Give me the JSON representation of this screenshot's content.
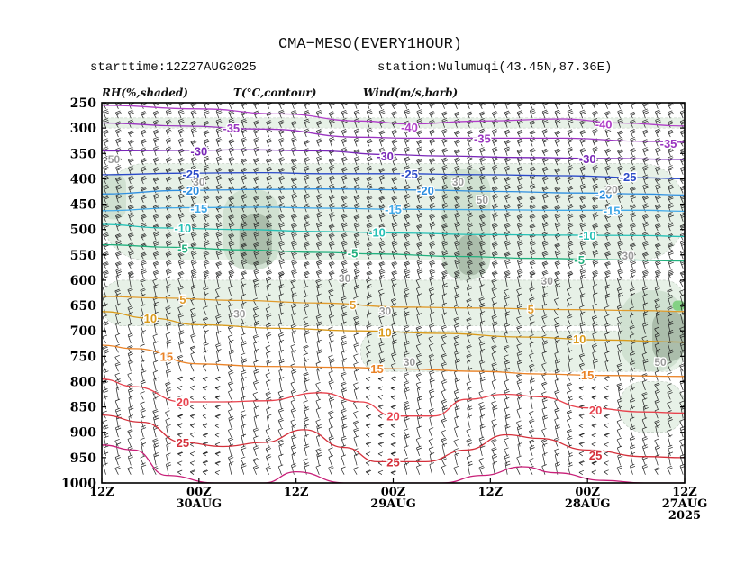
{
  "header": {
    "title": "CMA−MESO(EVERY1HOUR)",
    "starttime": "starttime:12Z27AUG2025",
    "station": "station:Wulumuqi(43.45N,87.36E)"
  },
  "legend": {
    "rh": "RH(%,shaded)",
    "temp": "T(°C,contour)",
    "wind": "Wind(m/s,barb)"
  },
  "colors": {
    "rh_light": "#e6f1e6",
    "rh_mid": "#cfdfd0",
    "rh_dark": "#a9bba9",
    "rh_vdark": "#8ea88f",
    "rh_green": "#7fd07f",
    "neg40": "#b03fc8",
    "neg35": "#9a35c0",
    "neg30": "#7a28b8",
    "neg25": "#2b49c8",
    "neg20": "#2f8fe0",
    "neg15": "#41a9e8",
    "neg10": "#25c0b5",
    "neg5": "#22b07e",
    "pos5": "#e09b2d",
    "pos10": "#d99a1a",
    "pos15": "#ea8226",
    "pos20": "#e8434e",
    "pos25": "#d42f3a",
    "pos30": "#c81f78",
    "barb": "#222222",
    "rh_label": "#9a9a9a"
  },
  "chart_data": {
    "type": "heatmap",
    "title": "CMA−MESO(EVERY1HOUR)",
    "subtitle_left": "starttime:12Z27AUG2025",
    "subtitle_right": "station:Wulumuqi(43.45N,87.36E)",
    "x_ticks": [
      {
        "hours": 72,
        "label": "12Z"
      },
      {
        "hours": 60,
        "label": "00Z",
        "sub": "30AUG"
      },
      {
        "hours": 48,
        "label": "12Z"
      },
      {
        "hours": 36,
        "label": "00Z",
        "sub": "29AUG"
      },
      {
        "hours": 24,
        "label": "12Z"
      },
      {
        "hours": 12,
        "label": "00Z",
        "sub": "28AUG"
      },
      {
        "hours": 0,
        "label": "12Z",
        "sub": "27AUG",
        "sub2": "2025"
      }
    ],
    "x_range_hours": [
      72,
      0
    ],
    "y_label_ticks": [
      250,
      300,
      350,
      400,
      450,
      500,
      550,
      600,
      650,
      700,
      750,
      800,
      850,
      900,
      950,
      1000
    ],
    "ylim_hPa": [
      250,
      1000
    ],
    "rh_contour_labels": [
      {
        "value": 50,
        "h": 70.5,
        "p": 360
      },
      {
        "value": 30,
        "h": 60,
        "p": 405
      },
      {
        "value": 30,
        "h": 28,
        "p": 405
      },
      {
        "value": 30,
        "h": 42,
        "p": 595
      },
      {
        "value": 30,
        "h": 17,
        "p": 600
      },
      {
        "value": 30,
        "h": 55,
        "p": 665
      },
      {
        "value": 30,
        "h": 37,
        "p": 660
      },
      {
        "value": 30,
        "h": 34,
        "p": 760
      },
      {
        "value": 50,
        "h": 25,
        "p": 440
      },
      {
        "value": 50,
        "h": 3,
        "p": 760
      },
      {
        "value": 20,
        "h": 9,
        "p": 420
      },
      {
        "value": 30,
        "h": 7,
        "p": 550
      }
    ],
    "temperature_contours": [
      {
        "value": -40,
        "label": "-40",
        "color": "neg40",
        "pts": [
          [
            72,
            255
          ],
          [
            60,
            262
          ],
          [
            50,
            272
          ],
          [
            40,
            286
          ],
          [
            34,
            292
          ],
          [
            25,
            286
          ],
          [
            15,
            282
          ],
          [
            8,
            290
          ],
          [
            0,
            296
          ]
        ]
      },
      {
        "value": -35,
        "label": "-35",
        "color": "neg35",
        "pts": [
          [
            72,
            290
          ],
          [
            62,
            296
          ],
          [
            52,
            302
          ],
          [
            40,
            318
          ],
          [
            34,
            320
          ],
          [
            25,
            320
          ],
          [
            15,
            320
          ],
          [
            5,
            326
          ],
          [
            0,
            328
          ]
        ]
      },
      {
        "value": -30,
        "label": "-30",
        "color": "neg30",
        "pts": [
          [
            72,
            345
          ],
          [
            62,
            344
          ],
          [
            54,
            343
          ],
          [
            45,
            345
          ],
          [
            37,
            352
          ],
          [
            30,
            355
          ],
          [
            20,
            358
          ],
          [
            10,
            360
          ],
          [
            0,
            362
          ]
        ]
      },
      {
        "value": -25,
        "label": "-25",
        "color": "neg25",
        "pts": [
          [
            72,
            392
          ],
          [
            62,
            389
          ],
          [
            52,
            388
          ],
          [
            45,
            390
          ],
          [
            35,
            390
          ],
          [
            25,
            392
          ],
          [
            15,
            394
          ],
          [
            5,
            398
          ],
          [
            0,
            400
          ]
        ]
      },
      {
        "value": -20,
        "label": "-20",
        "color": "neg20",
        "pts": [
          [
            72,
            430
          ],
          [
            62,
            423
          ],
          [
            52,
            421
          ],
          [
            45,
            420
          ],
          [
            33,
            422
          ],
          [
            23,
            425
          ],
          [
            13,
            428
          ],
          [
            5,
            430
          ],
          [
            0,
            432
          ]
        ]
      },
      {
        "value": -15,
        "label": "-15",
        "color": "neg15",
        "pts": [
          [
            72,
            463
          ],
          [
            62,
            457
          ],
          [
            52,
            456
          ],
          [
            45,
            458
          ],
          [
            35,
            460
          ],
          [
            25,
            461
          ],
          [
            15,
            462
          ],
          [
            5,
            462
          ],
          [
            0,
            464
          ]
        ]
      },
      {
        "value": -10,
        "label": "-10",
        "color": "neg10",
        "pts": [
          [
            72,
            490
          ],
          [
            64,
            497
          ],
          [
            55,
            500
          ],
          [
            45,
            504
          ],
          [
            35,
            507
          ],
          [
            25,
            510
          ],
          [
            15,
            511
          ],
          [
            5,
            512
          ],
          [
            0,
            514
          ]
        ]
      },
      {
        "value": -5,
        "label": "-5",
        "color": "neg5",
        "pts": [
          [
            72,
            530
          ],
          [
            63,
            535
          ],
          [
            55,
            540
          ],
          [
            45,
            545
          ],
          [
            38,
            548
          ],
          [
            28,
            553
          ],
          [
            18,
            557
          ],
          [
            8,
            560
          ],
          [
            0,
            562
          ]
        ]
      },
      {
        "value": 5,
        "label": "5",
        "color": "pos5",
        "pts": [
          [
            72,
            632
          ],
          [
            65,
            635
          ],
          [
            55,
            640
          ],
          [
            45,
            645
          ],
          [
            35,
            653
          ],
          [
            25,
            655
          ],
          [
            15,
            658
          ],
          [
            5,
            660
          ],
          [
            0,
            662
          ]
        ]
      },
      {
        "value": 10,
        "label": "10",
        "color": "pos10",
        "pts": [
          [
            72,
            662
          ],
          [
            66,
            675
          ],
          [
            60,
            688
          ],
          [
            50,
            695
          ],
          [
            40,
            700
          ],
          [
            30,
            705
          ],
          [
            20,
            712
          ],
          [
            10,
            718
          ],
          [
            0,
            722
          ]
        ]
      },
      {
        "value": 15,
        "label": "15",
        "color": "pos15",
        "pts": [
          [
            72,
            728
          ],
          [
            68,
            735
          ],
          [
            60,
            765
          ],
          [
            52,
            770
          ],
          [
            42,
            772
          ],
          [
            35,
            775
          ],
          [
            25,
            780
          ],
          [
            18,
            785
          ],
          [
            10,
            788
          ],
          [
            0,
            790
          ]
        ]
      },
      {
        "value": 20,
        "label": "20",
        "color": "pos20",
        "pts": [
          [
            72,
            795
          ],
          [
            68,
            810
          ],
          [
            62,
            840
          ],
          [
            57,
            840
          ],
          [
            52,
            838
          ],
          [
            45,
            822
          ],
          [
            40,
            840
          ],
          [
            36,
            868
          ],
          [
            31,
            868
          ],
          [
            27,
            835
          ],
          [
            22,
            825
          ],
          [
            18,
            830
          ],
          [
            12,
            852
          ],
          [
            5,
            860
          ],
          [
            0,
            862
          ]
        ]
      },
      {
        "value": 25,
        "label": "25",
        "color": "pos25",
        "pts": [
          [
            72,
            866
          ],
          [
            67,
            880
          ],
          [
            62,
            920
          ],
          [
            57,
            928
          ],
          [
            52,
            920
          ],
          [
            47,
            895
          ],
          [
            42,
            930
          ],
          [
            38,
            958
          ],
          [
            32,
            958
          ],
          [
            27,
            935
          ],
          [
            22,
            905
          ],
          [
            18,
            912
          ],
          [
            12,
            935
          ],
          [
            5,
            948
          ],
          [
            0,
            950
          ]
        ]
      },
      {
        "value": 30,
        "label": "30",
        "color": "pos30",
        "pts": [
          [
            72,
            925
          ],
          [
            68,
            935
          ],
          [
            64,
            985
          ],
          [
            58,
            1000
          ],
          [
            52,
            1000
          ],
          [
            48,
            978
          ],
          [
            42,
            1000
          ],
          [
            36,
            1000
          ],
          [
            30,
            1000
          ],
          [
            25,
            985
          ],
          [
            20,
            968
          ],
          [
            16,
            980
          ],
          [
            10,
            995
          ],
          [
            5,
            1000
          ],
          [
            0,
            1000
          ]
        ]
      }
    ],
    "temperature_labels": [
      {
        "text": "-35",
        "color": "neg35",
        "h": 56,
        "p": 300
      },
      {
        "text": "-40",
        "color": "neg40",
        "h": 34,
        "p": 298
      },
      {
        "text": "-40",
        "color": "neg40",
        "h": 10,
        "p": 292
      },
      {
        "text": "-35",
        "color": "neg35",
        "h": 25,
        "p": 320
      },
      {
        "text": "-35",
        "color": "neg35",
        "h": 2,
        "p": 330
      },
      {
        "text": "-30",
        "color": "neg30",
        "h": 60,
        "p": 345
      },
      {
        "text": "-30",
        "color": "neg30",
        "h": 37,
        "p": 355
      },
      {
        "text": "-30",
        "color": "neg30",
        "h": 12,
        "p": 360
      },
      {
        "text": "-25",
        "color": "neg25",
        "h": 61,
        "p": 390
      },
      {
        "text": "-25",
        "color": "neg25",
        "h": 34,
        "p": 390
      },
      {
        "text": "-25",
        "color": "neg25",
        "h": 7,
        "p": 396
      },
      {
        "text": "-20",
        "color": "neg20",
        "h": 61,
        "p": 422
      },
      {
        "text": "-20",
        "color": "neg20",
        "h": 32,
        "p": 422
      },
      {
        "text": "-20",
        "color": "neg20",
        "h": 10,
        "p": 430
      },
      {
        "text": "-15",
        "color": "neg15",
        "h": 60,
        "p": 458
      },
      {
        "text": "-15",
        "color": "neg15",
        "h": 36,
        "p": 460
      },
      {
        "text": "-15",
        "color": "neg15",
        "h": 9,
        "p": 462
      },
      {
        "text": "-10",
        "color": "neg10",
        "h": 62,
        "p": 497
      },
      {
        "text": "-10",
        "color": "neg10",
        "h": 38,
        "p": 505
      },
      {
        "text": "-10",
        "color": "neg10",
        "h": 12,
        "p": 511
      },
      {
        "text": "-5",
        "color": "neg5",
        "h": 62,
        "p": 537
      },
      {
        "text": "-5",
        "color": "neg5",
        "h": 41,
        "p": 546
      },
      {
        "text": "-5",
        "color": "neg5",
        "h": 13,
        "p": 559
      },
      {
        "text": "5",
        "color": "pos5",
        "h": 62,
        "p": 637
      },
      {
        "text": "5",
        "color": "pos5",
        "h": 41,
        "p": 648
      },
      {
        "text": "5",
        "color": "pos5",
        "h": 19,
        "p": 657
      },
      {
        "text": "10",
        "color": "pos10",
        "h": 66,
        "p": 675
      },
      {
        "text": "10",
        "color": "pos10",
        "h": 37,
        "p": 702
      },
      {
        "text": "10",
        "color": "pos10",
        "h": 13,
        "p": 716
      },
      {
        "text": "15",
        "color": "pos15",
        "h": 64,
        "p": 750
      },
      {
        "text": "15",
        "color": "pos15",
        "h": 38,
        "p": 774
      },
      {
        "text": "15",
        "color": "pos15",
        "h": 12,
        "p": 787
      },
      {
        "text": "20",
        "color": "pos20",
        "h": 62,
        "p": 840
      },
      {
        "text": "20",
        "color": "pos20",
        "h": 36,
        "p": 868
      },
      {
        "text": "20",
        "color": "pos20",
        "h": 11,
        "p": 856
      },
      {
        "text": "25",
        "color": "pos25",
        "h": 62,
        "p": 920
      },
      {
        "text": "25",
        "color": "pos25",
        "h": 36,
        "p": 958
      },
      {
        "text": "25",
        "color": "pos25",
        "h": 11,
        "p": 945
      }
    ],
    "rh_regions": [
      {
        "level": "light",
        "h0": 72,
        "h1": 0,
        "p0": 280,
        "p1": 300
      },
      {
        "level": "light",
        "h0": 72,
        "h1": 0,
        "p0": 370,
        "p1": 560
      },
      {
        "level": "light",
        "h0": 72,
        "h1": 0,
        "p0": 600,
        "p1": 690
      },
      {
        "level": "light",
        "h0": 40,
        "h1": 0,
        "p0": 700,
        "p1": 780
      },
      {
        "level": "light",
        "h0": 8,
        "h1": 0,
        "p0": 800,
        "p1": 900
      },
      {
        "level": "mid",
        "h0": 57,
        "h1": 50,
        "p0": 420,
        "p1": 580
      },
      {
        "level": "mid",
        "h0": 30,
        "h1": 24,
        "p0": 380,
        "p1": 600
      },
      {
        "level": "mid",
        "h0": 72,
        "h1": 69,
        "p0": 390,
        "p1": 480
      },
      {
        "level": "mid",
        "h0": 8,
        "h1": 0,
        "p0": 620,
        "p1": 780
      },
      {
        "level": "dark",
        "h0": 55,
        "h1": 51,
        "p0": 470,
        "p1": 570
      },
      {
        "level": "dark",
        "h0": 28,
        "h1": 25,
        "p0": 510,
        "p1": 590
      },
      {
        "level": "dark",
        "h0": 4,
        "h1": 0,
        "p0": 660,
        "p1": 760
      },
      {
        "level": "green",
        "h0": 1.5,
        "h1": 0,
        "p0": 640,
        "p1": 660
      }
    ]
  }
}
